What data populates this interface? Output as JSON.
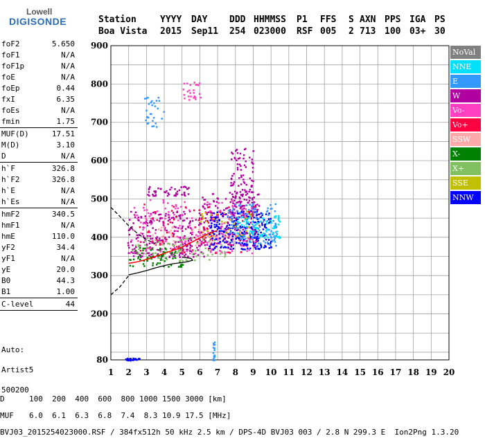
{
  "logo": {
    "top": "Lowell",
    "bottom": "DIGISONDE"
  },
  "header": {
    "labels": [
      "Station",
      "YYYY",
      "DAY",
      "DDD",
      "HHMMSS",
      "P1",
      "FFS",
      "S",
      "AXN",
      "PPS",
      "IGA",
      "PS"
    ],
    "values": [
      "Boa Vista",
      "2015",
      "Sep11",
      "254",
      "023000",
      "RSF",
      "005",
      "2",
      "713",
      "100",
      "03+",
      "30"
    ]
  },
  "params": {
    "group1": [
      {
        "name": "foF2",
        "value": "5.650"
      },
      {
        "name": "foF1",
        "value": "N/A"
      },
      {
        "name": "foF1p",
        "value": "N/A"
      },
      {
        "name": "foE",
        "value": "N/A"
      },
      {
        "name": "foEp",
        "value": "0.44"
      },
      {
        "name": "fxI",
        "value": "6.35"
      },
      {
        "name": "foEs",
        "value": "N/A"
      },
      {
        "name": "fmin",
        "value": "1.75"
      }
    ],
    "group2": [
      {
        "name": "MUF(D)",
        "value": "17.51"
      },
      {
        "name": "M(D)",
        "value": "3.10"
      },
      {
        "name": "D",
        "value": "N/A"
      }
    ],
    "group3": [
      {
        "name": "h`F",
        "value": "326.8"
      },
      {
        "name": "h`F2",
        "value": "326.8"
      },
      {
        "name": "h`E",
        "value": "N/A"
      },
      {
        "name": "h`Es",
        "value": "N/A"
      }
    ],
    "group4": [
      {
        "name": "hmF2",
        "value": "340.5"
      },
      {
        "name": "hmF1",
        "value": "N/A"
      },
      {
        "name": "hmE",
        "value": "110.0"
      },
      {
        "name": "yF2",
        "value": "34.4"
      },
      {
        "name": "yF1",
        "value": "N/A"
      },
      {
        "name": "yE",
        "value": "20.0"
      },
      {
        "name": "B0",
        "value": "44.3"
      },
      {
        "name": "B1",
        "value": "1.00"
      }
    ],
    "group5": [
      {
        "name": "C-level",
        "value": "44"
      }
    ]
  },
  "auto": {
    "line1": "Auto:",
    "line2": "Artist5",
    "line3": "500200"
  },
  "legend": [
    {
      "label": "NoVal",
      "color": "#808080"
    },
    {
      "label": "NNE",
      "color": "#00e0ff"
    },
    {
      "label": "E",
      "color": "#3399ff"
    },
    {
      "label": "W",
      "color": "#b000a0"
    },
    {
      "label": "Vo-",
      "color": "#ff40c0"
    },
    {
      "label": "Vo+",
      "color": "#ff0040"
    },
    {
      "label": "SSW",
      "color": "#ffaaaa"
    },
    {
      "label": "X-",
      "color": "#008000"
    },
    {
      "label": "X+",
      "color": "#80c060"
    },
    {
      "label": "SSE",
      "color": "#c0c000"
    },
    {
      "label": "NNW",
      "color": "#0000ff"
    }
  ],
  "footer": {
    "row1_label": "D",
    "row1_values": "100  200  400  600  800 1000 1500 3000 [km]",
    "row2_label": "MUF",
    "row2_values": "6.0  6.1  6.3  6.8  7.4  8.3 10.9 17.5 [MHz]",
    "row3": "BVJ03_2015254023000.RSF / 384fx512h 50 kHz 2.5 km / DPS-4D BVJ03 003 / 2.8 N 299.3 E  Ion2Png 1.3.20"
  },
  "chart_data": {
    "type": "scatter",
    "xlim": [
      1,
      20
    ],
    "ylim": [
      80,
      900
    ],
    "x_ticks": [
      1,
      2,
      3,
      4,
      5,
      6,
      7,
      8,
      9,
      10,
      11,
      12,
      13,
      14,
      15,
      16,
      17,
      18,
      19,
      20
    ],
    "y_ticks": [
      80,
      200,
      300,
      400,
      500,
      600,
      700,
      800,
      900
    ],
    "grid": true,
    "legend_position": "right",
    "clusters": [
      {
        "series": "W",
        "x_range": [
          1.9,
          6.3
        ],
        "y_range": [
          350,
          470
        ],
        "n": 260
      },
      {
        "series": "W",
        "x_range": [
          6.0,
          9.3
        ],
        "y_range": [
          380,
          520
        ],
        "n": 220
      },
      {
        "series": "W",
        "x_range": [
          7.7,
          9.0
        ],
        "y_range": [
          450,
          640
        ],
        "n": 120
      },
      {
        "series": "W",
        "x_range": [
          3.0,
          5.5
        ],
        "y_range": [
          510,
          535
        ],
        "n": 50
      },
      {
        "series": "Vo-",
        "x_range": [
          2.0,
          9.0
        ],
        "y_range": [
          360,
          500
        ],
        "n": 200
      },
      {
        "series": "Vo+",
        "x_range": [
          2.5,
          9.5
        ],
        "y_range": [
          360,
          490
        ],
        "n": 80
      },
      {
        "series": "NNW",
        "x_range": [
          6.5,
          10.0
        ],
        "y_range": [
          370,
          470
        ],
        "n": 230
      },
      {
        "series": "E",
        "x_range": [
          7.5,
          10.3
        ],
        "y_range": [
          380,
          490
        ],
        "n": 120
      },
      {
        "series": "NNE",
        "x_range": [
          8.0,
          10.5
        ],
        "y_range": [
          400,
          460
        ],
        "n": 80
      },
      {
        "series": "X-",
        "x_range": [
          2.0,
          5.0
        ],
        "y_range": [
          325,
          375
        ],
        "n": 70
      },
      {
        "series": "X+",
        "x_range": [
          2.0,
          7.5
        ],
        "y_range": [
          340,
          400
        ],
        "n": 70
      },
      {
        "series": "SSE",
        "x_range": [
          6.0,
          9.0
        ],
        "y_range": [
          400,
          470
        ],
        "n": 40
      },
      {
        "series": "SSW",
        "x_range": [
          3.0,
          8.0
        ],
        "y_range": [
          380,
          430
        ],
        "n": 40
      },
      {
        "series": "E",
        "x_range": [
          2.8,
          4.0
        ],
        "y_range": [
          690,
          770
        ],
        "n": 30
      },
      {
        "series": "Vo-",
        "x_range": [
          5.0,
          6.0
        ],
        "y_range": [
          760,
          810
        ],
        "n": 25
      },
      {
        "series": "NNW",
        "x_range": [
          1.8,
          2.6
        ],
        "y_range": [
          80,
          86
        ],
        "n": 25
      },
      {
        "series": "E",
        "x_range": [
          6.7,
          6.8
        ],
        "y_range": [
          80,
          130
        ],
        "n": 20
      }
    ],
    "profile_curve": [
      [
        2.0,
        302
      ],
      [
        2.5,
        307
      ],
      [
        3.0,
        313
      ],
      [
        3.5,
        320
      ],
      [
        4.0,
        326
      ],
      [
        4.5,
        331
      ],
      [
        5.0,
        334
      ],
      [
        5.3,
        336
      ],
      [
        5.6,
        340
      ],
      [
        5.5,
        345
      ],
      [
        5.0,
        348
      ]
    ],
    "trace_curve": [
      [
        2.0,
        332
      ],
      [
        2.5,
        336
      ],
      [
        3.0,
        342
      ],
      [
        3.5,
        350
      ],
      [
        4.0,
        358
      ],
      [
        4.5,
        366
      ],
      [
        5.0,
        374
      ],
      [
        5.5,
        386
      ],
      [
        6.0,
        398
      ],
      [
        6.5,
        410
      ],
      [
        7.0,
        418
      ]
    ],
    "extrap_low": [
      [
        1.0,
        250
      ],
      [
        1.5,
        270
      ],
      [
        2.0,
        300
      ]
    ],
    "extrap_high": [
      [
        1.0,
        478
      ],
      [
        1.5,
        455
      ],
      [
        2.0,
        430
      ],
      [
        2.5,
        410
      ],
      [
        3.0,
        394
      ],
      [
        3.5,
        383
      ]
    ]
  }
}
